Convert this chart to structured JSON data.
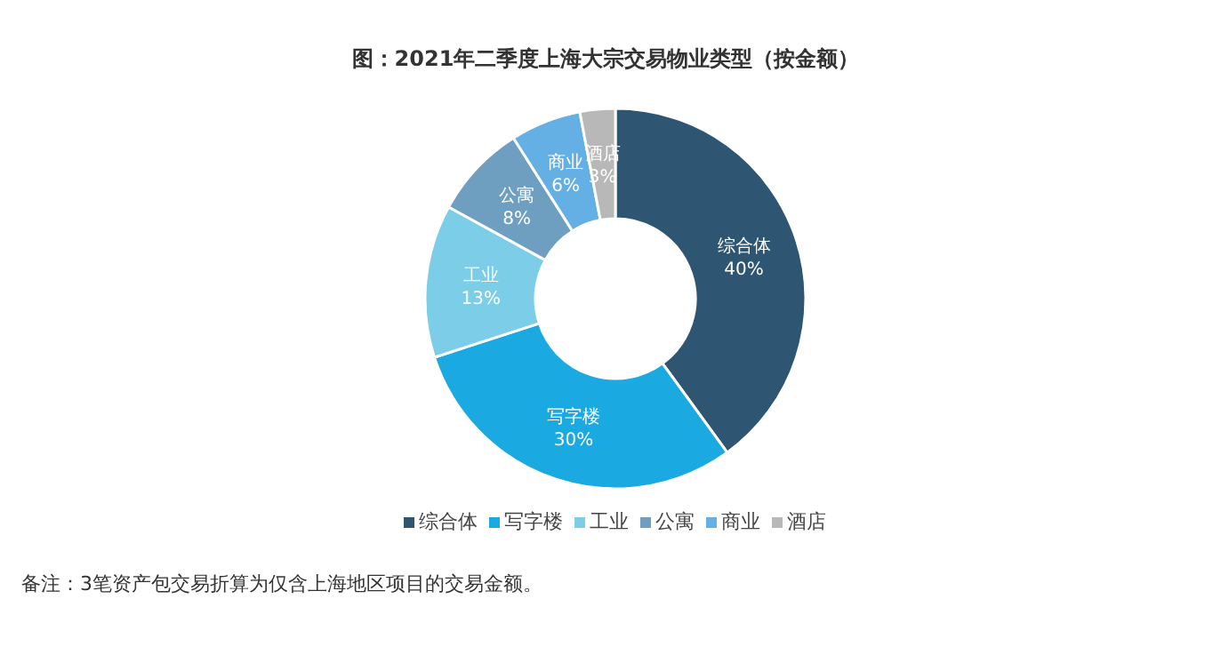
{
  "chart_data": {
    "type": "donut",
    "title": "图：2021年二季度上海大宗交易物业类型（按金额）",
    "categories": [
      "综合体",
      "写字楼",
      "工业",
      "公寓",
      "商业",
      "酒店"
    ],
    "values": [
      40,
      30,
      13,
      8,
      6,
      3
    ],
    "value_labels": [
      "40%",
      "30%",
      "13%",
      "8%",
      "6%",
      "3%"
    ],
    "colors": [
      "#2e5572",
      "#1ba9e1",
      "#7ccde8",
      "#6e9fc0",
      "#64b0e4",
      "#b8b8b8"
    ],
    "legend": "bottom",
    "annotations": [
      "备注：3笔资产包交易折算为仅含上海地区项目的交易金额。"
    ]
  }
}
